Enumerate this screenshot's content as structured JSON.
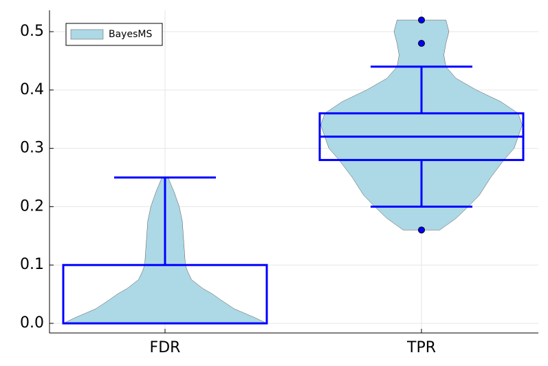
{
  "chart_data": {
    "type": "violin-box",
    "categories": [
      "FDR",
      "TPR"
    ],
    "ylim": [
      -0.0165,
      0.5366
    ],
    "yticks": [
      {
        "value": 0,
        "label": "0.0"
      },
      0.1,
      0.2,
      0.3,
      0.4,
      0.5
    ],
    "grid": true,
    "legend": "top-left",
    "series": [
      {
        "name": "BayesMS",
        "color": "#add8e6",
        "box_color": "#0000ff",
        "violins": [
          {
            "y": [
              0,
              0.01,
              0.025,
              0.04,
              0.05,
              0.06,
              0.075,
              0.09,
              0.1,
              0.125,
              0.15,
              0.175,
              0.2,
              0.225,
              0.25
            ],
            "width": [
              1,
              0.88,
              0.68,
              0.55,
              0.47,
              0.37,
              0.26,
              0.22,
              0.2,
              0.19,
              0.18,
              0.17,
              0.14,
              0.09,
              0.03
            ]
          },
          {
            "y": [
              0.16,
              0.18,
              0.2,
              0.22,
              0.25,
              0.28,
              0.3,
              0.32,
              0.34,
              0.36,
              0.38,
              0.4,
              0.42,
              0.44,
              0.46,
              0.48,
              0.5,
              0.52
            ],
            "width": [
              0.18,
              0.34,
              0.46,
              0.57,
              0.68,
              0.81,
              0.91,
              0.95,
              0.99,
              0.95,
              0.78,
              0.54,
              0.34,
              0.24,
              0.22,
              0.24,
              0.27,
              0.24
            ]
          }
        ],
        "boxes": [
          {
            "whislo": 0,
            "q1": 0,
            "median": 0,
            "q3": 0.1,
            "whishi": 0.25,
            "fliers": []
          },
          {
            "whislo": 0.2,
            "q1": 0.28,
            "median": 0.32,
            "q3": 0.36,
            "whishi": 0.44,
            "fliers": [
              0.16,
              0.48,
              0.52
            ]
          }
        ]
      }
    ]
  }
}
